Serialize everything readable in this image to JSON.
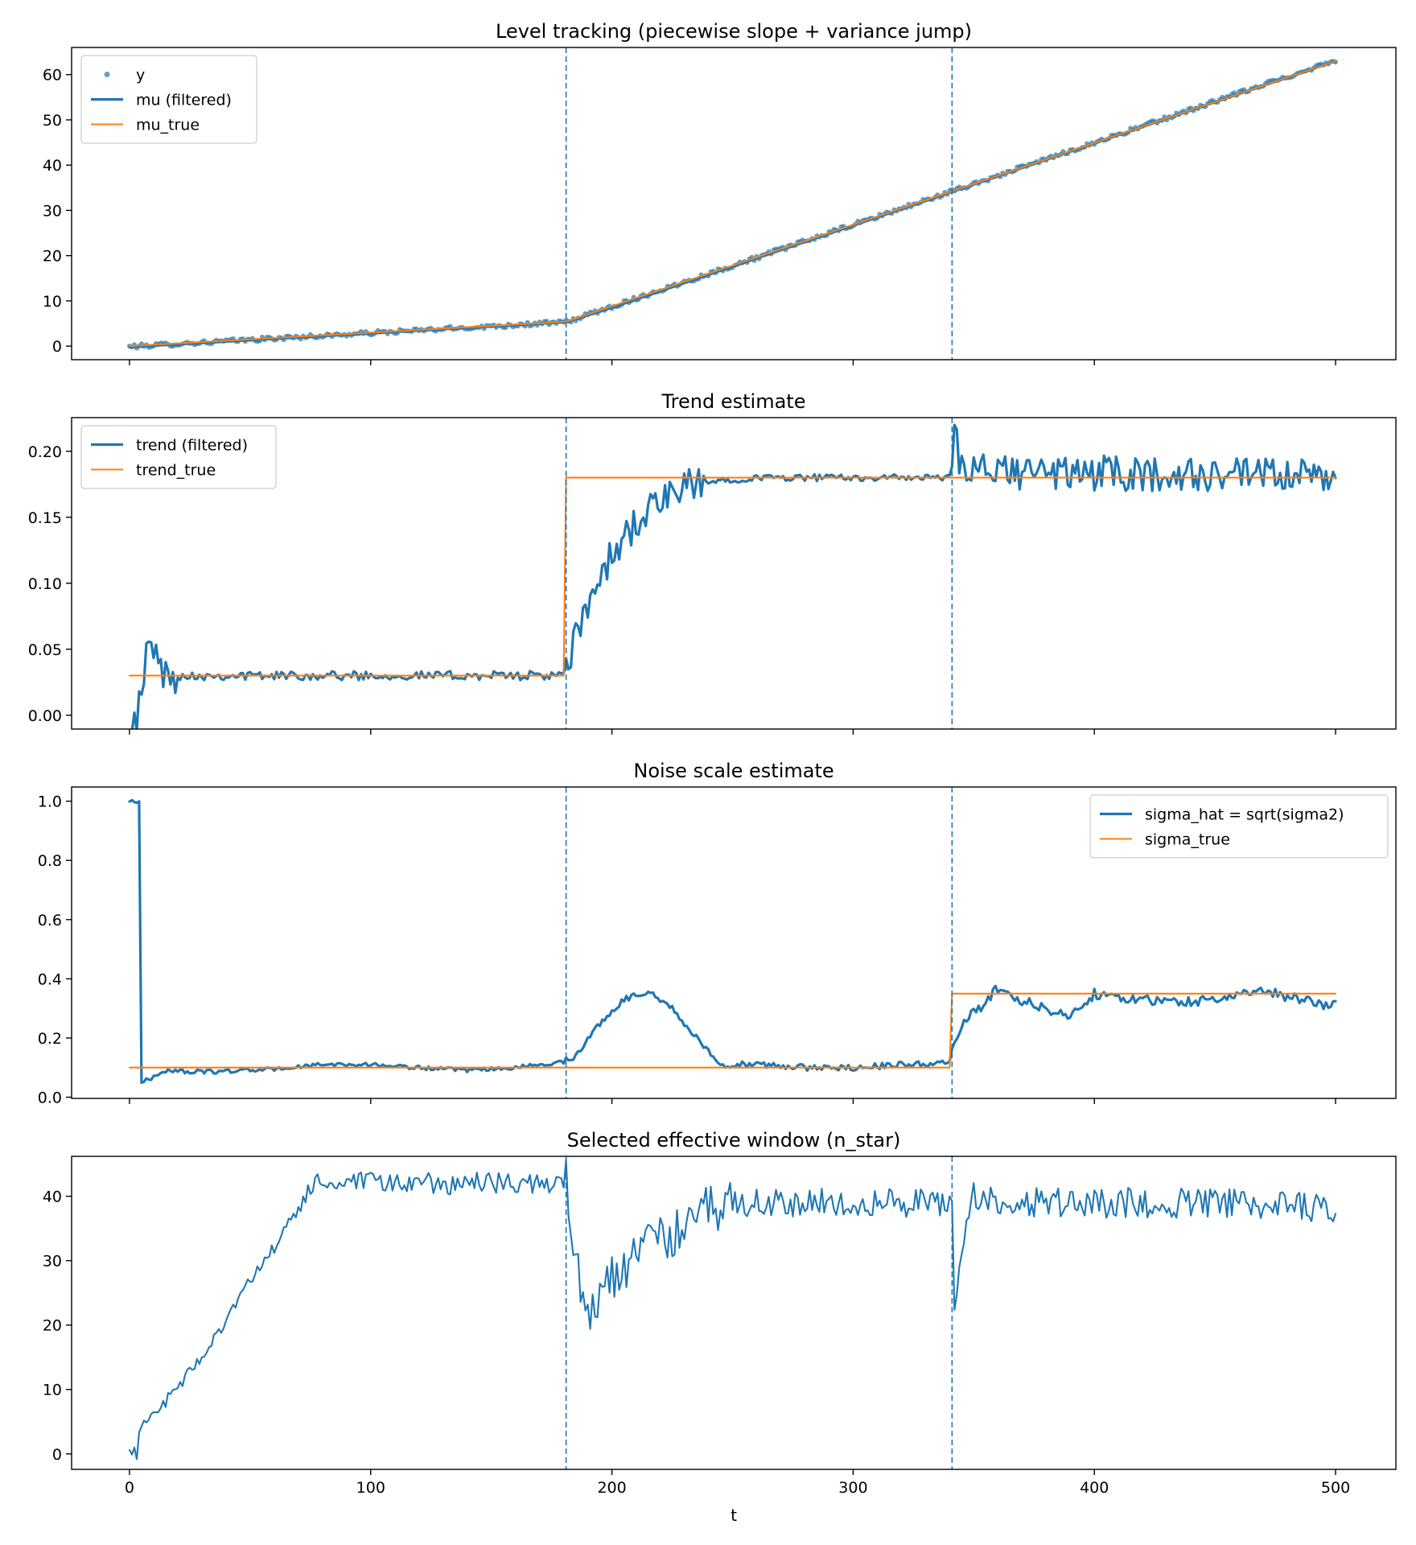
{
  "figure": {
    "xlabel": "t",
    "colors": {
      "blue": "#1f77b4",
      "orange": "#ff7f0e"
    }
  },
  "chart_data": [
    {
      "type": "line",
      "title": "Level tracking (piecewise slope + variance jump)",
      "xlim": [
        -24,
        525
      ],
      "ylim": [
        -3,
        66
      ],
      "xticks": [
        0,
        100,
        200,
        300,
        400,
        500
      ],
      "yticks": [
        0,
        10,
        20,
        30,
        40,
        50,
        60
      ],
      "show_xticklabels": false,
      "legend": "top-left",
      "vlines": [
        181,
        341
      ],
      "series": [
        {
          "name": "y",
          "style": "scatter",
          "color": "#1f77b4",
          "noise": 0.28,
          "keypoints": [
            [
              0,
              -0.1
            ],
            [
              181,
              5.3
            ],
            [
              341,
              34.2
            ],
            [
              500,
              63.2
            ]
          ]
        },
        {
          "name": "mu (filtered)",
          "style": "line-thick",
          "color": "#1f77b4",
          "noise": 0.0,
          "keypoints": [
            [
              0,
              -0.2
            ],
            [
              181,
              5.3
            ],
            [
              200,
              8.5
            ],
            [
              341,
              34.1
            ],
            [
              500,
              63.0
            ]
          ]
        },
        {
          "name": "mu_true",
          "style": "line",
          "color": "#ff7f0e",
          "noise": 0.0,
          "keypoints": [
            [
              0,
              0.0
            ],
            [
              181,
              5.4
            ],
            [
              341,
              34.2
            ],
            [
              500,
              63.0
            ]
          ]
        }
      ]
    },
    {
      "type": "line",
      "title": "Trend estimate",
      "xlim": [
        -24,
        525
      ],
      "ylim": [
        -0.0105,
        0.2255
      ],
      "xticks": [
        0,
        100,
        200,
        300,
        400,
        500
      ],
      "yticks": [
        0.0,
        0.05,
        0.1,
        0.15,
        0.2
      ],
      "ytick_labels": [
        "0.00",
        "0.05",
        "0.10",
        "0.15",
        "0.20"
      ],
      "show_xticklabels": false,
      "legend": "top-left",
      "vlines": [
        181,
        341
      ],
      "series": [
        {
          "name": "trend (filtered)",
          "style": "line-thick",
          "color": "#1f77b4",
          "noise_segments": [
            [
              0,
              20,
              0.008
            ],
            [
              20,
              181,
              0.002
            ],
            [
              181,
              240,
              0.008
            ],
            [
              240,
              341,
              0.0015
            ],
            [
              341,
              500,
              0.008
            ]
          ],
          "keypoints": [
            [
              0,
              0.0
            ],
            [
              3,
              0.0
            ],
            [
              5,
              0.01
            ],
            [
              7,
              0.045
            ],
            [
              10,
              0.056
            ],
            [
              12,
              0.04
            ],
            [
              15,
              0.028
            ],
            [
              18,
              0.03
            ],
            [
              181,
              0.03
            ],
            [
              185,
              0.06
            ],
            [
              195,
              0.105
            ],
            [
              205,
              0.135
            ],
            [
              215,
              0.155
            ],
            [
              230,
              0.172
            ],
            [
              245,
              0.178
            ],
            [
              260,
              0.18
            ],
            [
              341,
              0.18
            ],
            [
              342,
              0.214
            ],
            [
              345,
              0.185
            ],
            [
              500,
              0.18
            ],
            [
              500,
              0.19
            ]
          ]
        },
        {
          "name": "trend_true",
          "style": "line",
          "color": "#ff7f0e",
          "keypoints": [
            [
              0,
              0.03
            ],
            [
              180,
              0.03
            ],
            [
              181,
              0.18
            ],
            [
              500,
              0.18
            ]
          ]
        }
      ]
    },
    {
      "type": "line",
      "title": "Noise scale estimate",
      "xlim": [
        -24,
        525
      ],
      "ylim": [
        -0.004,
        1.048
      ],
      "xticks": [
        0,
        100,
        200,
        300,
        400,
        500
      ],
      "yticks": [
        0.0,
        0.2,
        0.4,
        0.6,
        0.8,
        1.0
      ],
      "ytick_labels": [
        "0.0",
        "0.2",
        "0.4",
        "0.6",
        "0.8",
        "1.0"
      ],
      "show_xticklabels": false,
      "legend": "top-right",
      "vlines": [
        181,
        341
      ],
      "series": [
        {
          "name": "sigma_hat = sqrt(sigma2)",
          "style": "line-thick",
          "color": "#1f77b4",
          "noise_segments": [
            [
              0,
              181,
              0.004
            ],
            [
              181,
              341,
              0.006
            ],
            [
              341,
              500,
              0.01
            ]
          ],
          "keypoints": [
            [
              0,
              1.0
            ],
            [
              4,
              1.0
            ],
            [
              5,
              0.05
            ],
            [
              8,
              0.06
            ],
            [
              15,
              0.09
            ],
            [
              30,
              0.085
            ],
            [
              60,
              0.095
            ],
            [
              80,
              0.11
            ],
            [
              100,
              0.11
            ],
            [
              120,
              0.1
            ],
            [
              140,
              0.09
            ],
            [
              160,
              0.1
            ],
            [
              180,
              0.12
            ],
            [
              185,
              0.14
            ],
            [
              195,
              0.25
            ],
            [
              205,
              0.33
            ],
            [
              215,
              0.36
            ],
            [
              225,
              0.3
            ],
            [
              235,
              0.2
            ],
            [
              245,
              0.11
            ],
            [
              260,
              0.11
            ],
            [
              280,
              0.1
            ],
            [
              300,
              0.1
            ],
            [
              320,
              0.11
            ],
            [
              340,
              0.115
            ],
            [
              342,
              0.2
            ],
            [
              348,
              0.27
            ],
            [
              355,
              0.32
            ],
            [
              360,
              0.37
            ],
            [
              365,
              0.34
            ],
            [
              380,
              0.3
            ],
            [
              390,
              0.27
            ],
            [
              400,
              0.35
            ],
            [
              430,
              0.32
            ],
            [
              450,
              0.33
            ],
            [
              470,
              0.36
            ],
            [
              490,
              0.32
            ],
            [
              500,
              0.31
            ]
          ]
        },
        {
          "name": "sigma_true",
          "style": "line",
          "color": "#ff7f0e",
          "keypoints": [
            [
              0,
              0.1
            ],
            [
              340,
              0.1
            ],
            [
              341,
              0.35
            ],
            [
              500,
              0.35
            ]
          ]
        }
      ]
    },
    {
      "type": "line",
      "title": "Selected effective window (n_star)",
      "xlim": [
        -24,
        525
      ],
      "ylim": [
        -2.4,
        46.2
      ],
      "xticks": [
        0,
        100,
        200,
        300,
        400,
        500
      ],
      "yticks": [
        0,
        10,
        20,
        30,
        40
      ],
      "show_xticklabels": true,
      "legend": "none",
      "vlines": [
        181,
        341
      ],
      "series": [
        {
          "name": "n_star",
          "style": "line",
          "color": "#1f77b4",
          "noise_segments": [
            [
              0,
              70,
              0.6
            ],
            [
              70,
              181,
              1.0
            ],
            [
              181,
              250,
              2.2
            ],
            [
              250,
              341,
              1.3
            ],
            [
              341,
              500,
              1.4
            ]
          ],
          "keypoints": [
            [
              0,
              0
            ],
            [
              3,
              0
            ],
            [
              5,
              5
            ],
            [
              15,
              8
            ],
            [
              30,
              15
            ],
            [
              45,
              24
            ],
            [
              60,
              32
            ],
            [
              70,
              38
            ],
            [
              76,
              42
            ],
            [
              100,
              42
            ],
            [
              150,
              42
            ],
            [
              181,
              42
            ],
            [
              183,
              36
            ],
            [
              187,
              26
            ],
            [
              192,
              22
            ],
            [
              200,
              27
            ],
            [
              210,
              31
            ],
            [
              225,
              34
            ],
            [
              240,
              38
            ],
            [
              255,
              39
            ],
            [
              300,
              39
            ],
            [
              341,
              39
            ],
            [
              342,
              23
            ],
            [
              345,
              33
            ],
            [
              350,
              40
            ],
            [
              360,
              39
            ],
            [
              400,
              39
            ],
            [
              450,
              39
            ],
            [
              500,
              38
            ]
          ]
        }
      ]
    }
  ],
  "tick_labels_x": [
    "0",
    "100",
    "200",
    "300",
    "400",
    "500"
  ],
  "tick_labels_y0": [
    "0",
    "10",
    "20",
    "30",
    "40",
    "50",
    "60"
  ],
  "tick_labels_y3": [
    "0",
    "10",
    "20",
    "30",
    "40"
  ]
}
